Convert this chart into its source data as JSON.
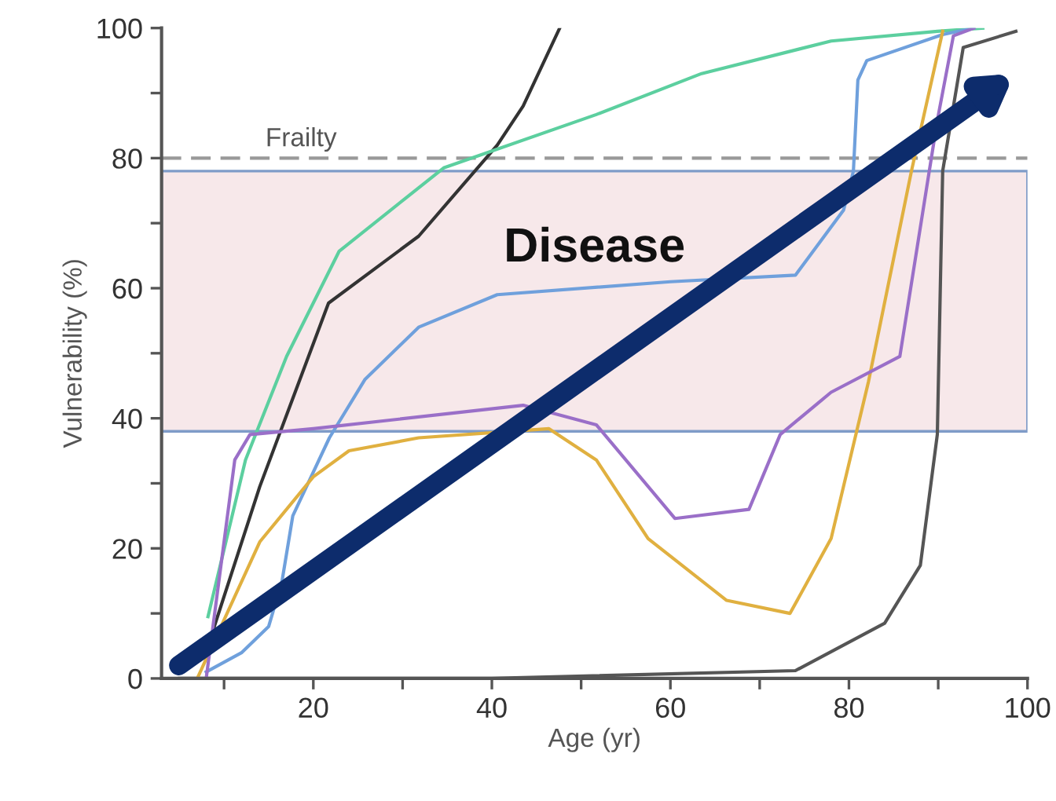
{
  "chart_data": {
    "type": "line",
    "xlabel": "Age (yr)",
    "ylabel": "Vulnerability (%)",
    "xlim": [
      3,
      100
    ],
    "xticks": [
      {
        "value": 10,
        "label": null
      },
      20,
      {
        "value": 30,
        "label": null
      },
      40,
      {
        "value": 50,
        "label": null
      },
      60,
      {
        "value": 70,
        "label": null
      },
      80,
      {
        "value": 90,
        "label": null
      },
      100
    ],
    "ylim": [
      0,
      100
    ],
    "yticks": [
      0,
      {
        "value": 10,
        "label": null
      },
      20,
      {
        "value": 30,
        "label": null
      },
      40,
      {
        "value": 50,
        "label": null
      },
      60,
      {
        "value": 70,
        "label": null
      },
      80,
      {
        "value": 90,
        "label": null
      },
      100
    ],
    "grid": false,
    "legend": false,
    "bands": [
      {
        "axis": "y",
        "from": 38,
        "to": 78,
        "label": "Disease",
        "color": "#f7e8ea"
      }
    ],
    "ref_lines": [
      {
        "axis": "y",
        "value": 80,
        "label": "Frailty",
        "color": "#999999",
        "line_style": "dashed"
      }
    ],
    "series": [
      {
        "color": "#333333",
        "x": [
          8.2,
          14,
          21.7,
          31.8,
          40.6,
          43.5,
          47.6
        ],
        "values": [
          5,
          29.5,
          57.7,
          68,
          82,
          88,
          100
        ]
      },
      {
        "color": "#5ccf9f",
        "x": [
          8.2,
          12.4,
          17,
          22.9,
          34.6,
          51.7,
          63.5,
          78,
          89.9,
          95
        ],
        "values": [
          9.5,
          33.6,
          49.5,
          65.7,
          78.5,
          86.7,
          93,
          98,
          99.5,
          100
        ]
      },
      {
        "color": "#6fa0dc",
        "x": [
          8,
          12,
          15,
          16.5,
          17.7,
          21.8,
          25.8,
          31.8,
          40.6,
          60,
          74,
          79.4,
          80.5,
          81,
          82,
          90.5,
          94
        ],
        "values": [
          1,
          4,
          8,
          15,
          25,
          37,
          46,
          54,
          59,
          61,
          62,
          72,
          78,
          92,
          95,
          99,
          100
        ]
      },
      {
        "color": "#e0b040",
        "x": [
          7,
          14,
          20,
          24,
          31.8,
          46.4,
          51.7,
          57.5,
          66.3,
          73.4,
          78,
          82.2,
          87,
          90.5
        ],
        "values": [
          0,
          21,
          31,
          35,
          37,
          38.4,
          33.6,
          21.5,
          12,
          10,
          21.5,
          45.7,
          78,
          99.5
        ]
      },
      {
        "color": "#9a6fc8",
        "x": [
          8,
          8.9,
          11.2,
          12.9,
          20,
          43.5,
          51.7,
          60.5,
          68.8,
          72.3,
          78,
          85.7,
          89.9,
          91.7,
          94
        ],
        "values": [
          0,
          9.5,
          33.6,
          37.5,
          38.4,
          42,
          39,
          24.6,
          26,
          37.5,
          44,
          49.5,
          85.8,
          98.8,
          100
        ]
      },
      {
        "color": "#555555",
        "x": [
          5,
          40,
          74,
          84,
          88,
          89.9,
          90.5,
          92.8,
          98.7
        ],
        "values": [
          0,
          0,
          1.2,
          8.5,
          17.4,
          37.5,
          78,
          97,
          99.5
        ]
      }
    ]
  }
}
